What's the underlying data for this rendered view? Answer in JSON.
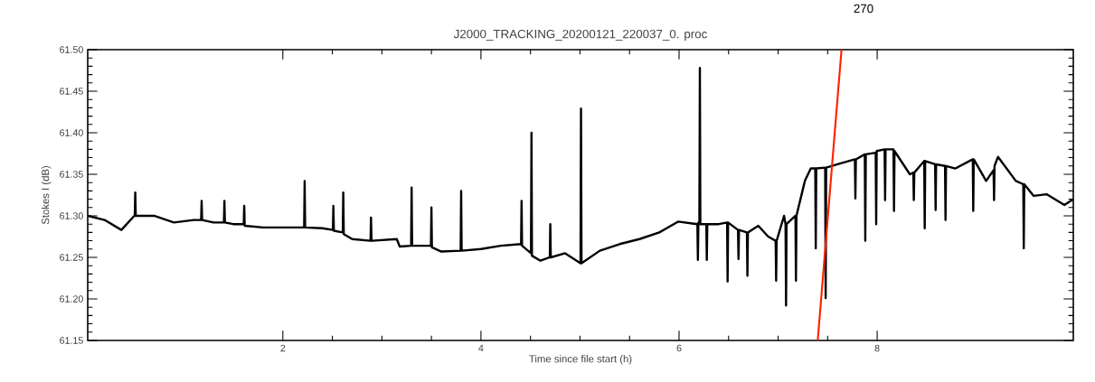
{
  "chart_data": {
    "type": "line",
    "title": "J2000_TRACKING_20200121_220037_0. proc",
    "xlabel": "Time since file start (h)",
    "ylabel": "Stokes I (dB)",
    "annotations": [
      "270"
    ],
    "xlim": [
      0.03,
      9.98
    ],
    "ylim": [
      61.15,
      61.5
    ],
    "xticks": [
      2,
      4,
      6,
      8
    ],
    "yticks": [
      {
        "value": 61.15,
        "label": "61.15"
      },
      {
        "value": 61.2,
        "label": "61.20"
      },
      {
        "value": 61.25,
        "label": "61.25"
      },
      {
        "value": 61.3,
        "label": "61.30"
      },
      {
        "value": 61.35,
        "label": "61.35"
      },
      {
        "value": 61.4,
        "label": "61.40"
      },
      {
        "value": 61.45,
        "label": "61.45"
      },
      {
        "value": 61.5,
        "label": "61.50"
      }
    ],
    "series": [
      {
        "color": "#000000",
        "x": [
          0.03,
          0.2,
          0.37,
          0.5,
          0.505,
          0.51,
          0.515,
          0.7,
          0.9,
          1.1,
          1.175,
          1.18,
          1.185,
          1.3,
          1.405,
          1.41,
          1.415,
          1.5,
          1.605,
          1.61,
          1.615,
          1.8,
          2.0,
          2.215,
          2.22,
          2.225,
          2.4,
          2.505,
          2.51,
          2.515,
          2.605,
          2.61,
          2.615,
          2.7,
          2.885,
          2.89,
          2.895,
          3.15,
          3.18,
          3.295,
          3.3,
          3.305,
          3.495,
          3.5,
          3.505,
          3.6,
          3.795,
          3.8,
          3.805,
          4.0,
          4.2,
          4.405,
          4.41,
          4.415,
          4.505,
          4.51,
          4.515,
          4.6,
          4.695,
          4.7,
          4.705,
          4.85,
          5.005,
          5.01,
          5.015,
          5.2,
          5.4,
          5.6,
          5.8,
          5.99,
          6.185,
          6.19,
          6.195,
          6.205,
          6.21,
          6.215,
          6.275,
          6.28,
          6.285,
          6.4,
          6.485,
          6.49,
          6.495,
          6.595,
          6.6,
          6.605,
          6.685,
          6.69,
          6.695,
          6.8,
          6.9,
          6.975,
          6.98,
          6.985,
          7.06,
          7.075,
          7.08,
          7.085,
          7.175,
          7.18,
          7.185,
          7.27,
          7.33,
          7.375,
          7.38,
          7.385,
          7.475,
          7.48,
          7.485,
          7.6,
          7.775,
          7.78,
          7.785,
          7.875,
          7.88,
          7.885,
          7.985,
          7.99,
          7.995,
          8.075,
          8.08,
          8.085,
          8.165,
          8.17,
          8.175,
          8.33,
          8.365,
          8.37,
          8.375,
          8.475,
          8.48,
          8.485,
          8.585,
          8.59,
          8.595,
          8.685,
          8.69,
          8.695,
          8.79,
          8.965,
          8.97,
          8.975,
          9.1,
          9.175,
          9.18,
          9.185,
          9.22,
          9.4,
          9.475,
          9.48,
          9.485,
          9.58,
          9.71,
          9.89,
          9.98
        ],
        "values": [
          61.3,
          61.295,
          61.283,
          61.3,
          61.3,
          61.328,
          61.3,
          61.3,
          61.292,
          61.295,
          61.295,
          61.318,
          61.295,
          61.292,
          61.292,
          61.318,
          61.292,
          61.29,
          61.29,
          61.312,
          61.288,
          61.286,
          61.286,
          61.286,
          61.342,
          61.286,
          61.285,
          61.283,
          61.312,
          61.282,
          61.28,
          61.328,
          61.278,
          61.272,
          61.27,
          61.298,
          61.27,
          61.272,
          61.263,
          61.264,
          61.334,
          61.264,
          61.264,
          61.31,
          61.262,
          61.257,
          61.258,
          61.33,
          61.258,
          61.26,
          61.264,
          61.266,
          61.318,
          61.264,
          61.255,
          61.4,
          61.252,
          61.246,
          61.25,
          61.29,
          61.25,
          61.255,
          61.243,
          61.429,
          61.243,
          61.258,
          61.266,
          61.272,
          61.28,
          61.293,
          61.29,
          61.247,
          61.292,
          61.292,
          61.478,
          61.29,
          61.29,
          61.247,
          61.29,
          61.29,
          61.292,
          61.221,
          61.292,
          61.283,
          61.248,
          61.283,
          61.28,
          61.228,
          61.28,
          61.288,
          61.275,
          61.27,
          61.222,
          61.27,
          61.3,
          61.29,
          61.192,
          61.29,
          61.3,
          61.222,
          61.3,
          61.342,
          61.357,
          61.357,
          61.261,
          61.357,
          61.358,
          61.201,
          61.358,
          61.362,
          61.368,
          61.321,
          61.368,
          61.374,
          61.27,
          61.374,
          61.376,
          61.29,
          61.378,
          61.38,
          61.319,
          61.38,
          61.38,
          61.306,
          61.378,
          61.35,
          61.352,
          61.319,
          61.352,
          61.366,
          61.285,
          61.366,
          61.362,
          61.307,
          61.362,
          61.36,
          61.295,
          61.36,
          61.357,
          61.368,
          61.306,
          61.368,
          61.342,
          61.355,
          61.319,
          61.36,
          61.371,
          61.342,
          61.338,
          61.261,
          61.338,
          61.324,
          61.326,
          61.313,
          61.32
        ]
      },
      {
        "color": "#ff2200",
        "x": [
          7.4,
          7.64
        ],
        "values": [
          61.15,
          61.5
        ]
      }
    ]
  }
}
